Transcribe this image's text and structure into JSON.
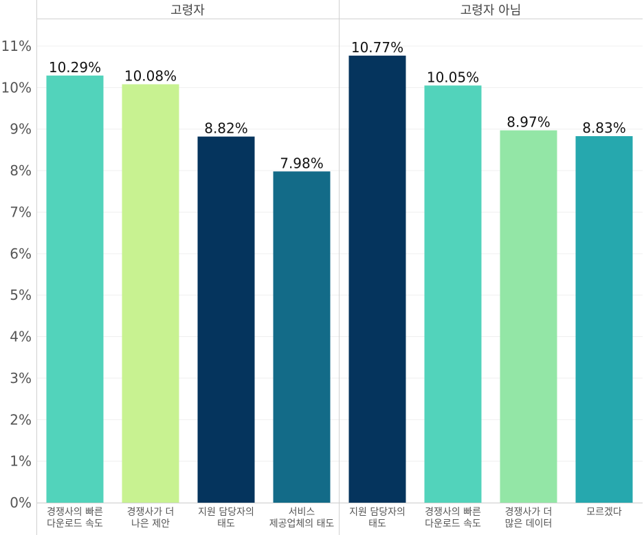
{
  "chart_data": {
    "type": "bar",
    "ylim": [
      0,
      11
    ],
    "yticks": [
      "0%",
      "1%",
      "2%",
      "3%",
      "4%",
      "5%",
      "6%",
      "7%",
      "8%",
      "9%",
      "10%",
      "11%"
    ],
    "grid": true,
    "panels": [
      {
        "title": "고령자",
        "bars": [
          {
            "lines": [
              "경쟁사의 빠른",
              "다운로드 속도"
            ],
            "value": 10.29,
            "label": "10.29%",
            "color": "#52d3bb"
          },
          {
            "lines": [
              "경쟁사가 더",
              "나은 제안"
            ],
            "value": 10.08,
            "label": "10.08%",
            "color": "#c8f291"
          },
          {
            "lines": [
              "지원 담당자의",
              "태도"
            ],
            "value": 8.82,
            "label": "8.82%",
            "color": "#05345d"
          },
          {
            "lines": [
              "서비스",
              "제공업체의 태도"
            ],
            "value": 7.98,
            "label": "7.98%",
            "color": "#136b88"
          }
        ]
      },
      {
        "title": "고령자 아님",
        "bars": [
          {
            "lines": [
              "지원 담당자의",
              "태도"
            ],
            "value": 10.77,
            "label": "10.77%",
            "color": "#05345d"
          },
          {
            "lines": [
              "경쟁사의 빠른",
              "다운로드 속도"
            ],
            "value": 10.05,
            "label": "10.05%",
            "color": "#52d3bb"
          },
          {
            "lines": [
              "경쟁사가 더",
              "많은 데이터"
            ],
            "value": 8.97,
            "label": "8.97%",
            "color": "#93e6a6"
          },
          {
            "lines": [
              "모르겠다"
            ],
            "value": 8.83,
            "label": "8.83%",
            "color": "#26a8ae"
          }
        ]
      }
    ]
  }
}
